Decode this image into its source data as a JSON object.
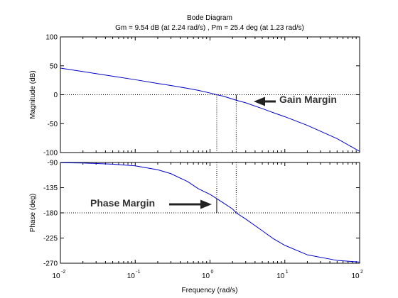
{
  "chart_data": {
    "type": "line",
    "title": "Bode Diagram",
    "subtitle": "Gm = 9.54 dB (at 2.24 rad/s) ,  Pm = 25.4 deg (at 1.23 rad/s)",
    "xlabel": "Frequency  (rad/s)",
    "xscale": "log",
    "xlim": [
      0.01,
      100
    ],
    "x_ticks": [
      {
        "base": "10",
        "exp": "-2",
        "value": 0.01
      },
      {
        "base": "10",
        "exp": "-1",
        "value": 0.1
      },
      {
        "base": "10",
        "exp": "0",
        "value": 1
      },
      {
        "base": "10",
        "exp": "1",
        "value": 10
      },
      {
        "base": "10",
        "exp": "2",
        "value": 100
      }
    ],
    "grid": false,
    "line_color": "#0000cc",
    "magnitude": {
      "ylabel": "Magnitude (dB)",
      "ylim": [
        -100,
        100
      ],
      "y_ticks": [
        100,
        50,
        0,
        -50,
        -100
      ],
      "x": [
        0.01,
        0.02,
        0.05,
        0.1,
        0.2,
        0.3,
        0.5,
        0.7,
        1.0,
        1.23,
        1.5,
        2.0,
        2.24,
        3.0,
        5.0,
        7.0,
        10,
        20,
        50,
        100
      ],
      "y": [
        46,
        40,
        32,
        26,
        19.5,
        16,
        11,
        7.5,
        3,
        0,
        -2.5,
        -7.5,
        -9.54,
        -14,
        -24,
        -31,
        -38,
        -53,
        -76,
        -98
      ]
    },
    "phase": {
      "ylabel": "Phase (deg)",
      "ylim": [
        -270,
        -90
      ],
      "y_ticks": [
        -90,
        -135,
        -180,
        -225,
        -270
      ],
      "x": [
        0.01,
        0.02,
        0.05,
        0.1,
        0.2,
        0.3,
        0.5,
        0.7,
        1.0,
        1.23,
        1.5,
        2.0,
        2.24,
        3.0,
        5.0,
        7.0,
        10,
        20,
        50,
        100
      ],
      "y": [
        -90.5,
        -91,
        -93,
        -96,
        -103,
        -110,
        -124,
        -137,
        -147,
        -154.6,
        -162,
        -173,
        -180,
        -191,
        -212,
        -226,
        -238,
        -255,
        -265,
        -268
      ]
    },
    "gain_margin": {
      "label": "Gain Margin",
      "value_db": 9.54,
      "frequency": 2.24
    },
    "phase_margin": {
      "label": "Phase Margin",
      "value_deg": 25.4,
      "frequency": 1.23
    }
  }
}
